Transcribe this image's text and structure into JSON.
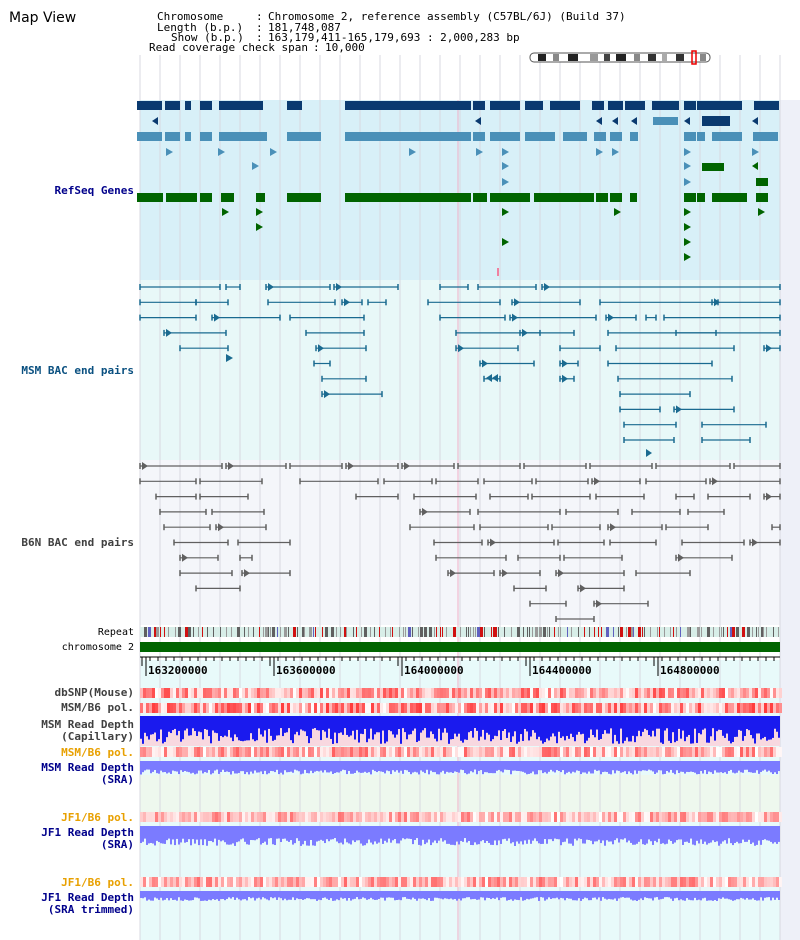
{
  "title": "Map View",
  "info": {
    "chromosome_key": "Chromosome",
    "chromosome_val": "Chromosome 2, reference assembly (C57BL/6J) (Build 37)",
    "length_key": "Length (b.p.)",
    "length_val": "181,748,087",
    "show_key": "Show (b.p.)",
    "show_val": "163,179,411-165,179,693 : 2,000,283 bp",
    "coverage_key": "Read coverage check span",
    "coverage_val": "10,000"
  },
  "tracks": {
    "refseq": "RefSeq Genes",
    "msm_bac": "MSM BAC end pairs",
    "b6n_bac": "B6N BAC end pairs",
    "repeat": "Repeat",
    "chromosome": "chromosome 2",
    "dbsnp": "dbSNP(Mouse)",
    "msm_pol_1": "MSM/B6 pol.",
    "msm_depth_cap_1": "MSM Read Depth",
    "msm_depth_cap_2": "(Capillary)",
    "msm_pol_2": "MSM/B6 pol.",
    "msm_depth_sra_1": "MSM Read Depth",
    "msm_depth_sra_2": "(SRA)",
    "jf1_pol_1": "JF1/B6 pol.",
    "jf1_depth_1": "JF1 Read Depth",
    "jf1_depth_2": "(SRA)",
    "jf1_pol_2": "JF1/B6 pol.",
    "jf1_trim_1": "JF1 Read Depth",
    "jf1_trim_2": "(SRA trimmed)"
  },
  "ruler": {
    "ticks": [
      "163200000",
      "163600000",
      "164000000",
      "164400000",
      "164800000"
    ]
  },
  "colors": {
    "refseq_bg": "#d8f0f8",
    "msm_bg": "#e8f8f8",
    "b6n_bg": "#f4f6fa",
    "gene_navy": "#0a3a70",
    "gene_light": "#4a90b8",
    "gene_green": "#006400",
    "msm_line": "#1a6a90",
    "b6n_line": "#606060",
    "chromosome_bar": "#006400",
    "depth_blue": "#1a1aee",
    "depth_periwinkle": "#7b7bff",
    "pol_red": "#f05050",
    "label_orange": "#e8a000",
    "label_navy": "#00008b",
    "label_teal": "#0a5080"
  }
}
